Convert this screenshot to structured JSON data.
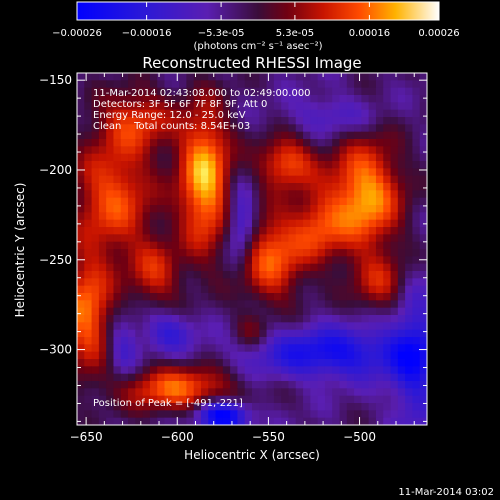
{
  "chart_data": {
    "type": "heatmap",
    "title": "Reconstructed RHESSI Image",
    "xlabel": "Heliocentric X (arcsec)",
    "ylabel": "Heliocentric Y (arcsec)",
    "xlim": [
      -655,
      -463
    ],
    "ylim": [
      -342,
      -146
    ],
    "x_ticks": [
      -650,
      -600,
      -550,
      -500
    ],
    "y_ticks": [
      -150,
      -200,
      -250,
      -300
    ],
    "colorbar": {
      "units": "(photons cm⁻² s⁻¹ asec⁻²)",
      "ticks": [
        "-0.00026",
        "-0.00016",
        "-5.3e-05",
        "5.3e-05",
        "0.00016",
        "0.00026"
      ],
      "min": -0.00026,
      "max": 0.00026
    },
    "annotations": [
      "11-Mar-2014 02:43:08.000 to 02:49:00.000",
      "Detectors: 3F 5F 6F 7F 8F 9F, Att 0",
      "Energy Range: 12.0 - 25.0 keV",
      "Clean    Total counts: 8.54E+03"
    ],
    "peak_label": "Position of Peak = [-491,-221]",
    "grid_cols": 48,
    "grid_rows": 48,
    "blobs": [
      {
        "x": -585,
        "y": -205,
        "sx": 10,
        "sy": 28,
        "a": 1.0
      },
      {
        "x": -497,
        "y": -215,
        "sx": 14,
        "sy": 22,
        "a": 0.95
      },
      {
        "x": -540,
        "y": -196,
        "sx": 11,
        "sy": 10,
        "a": 0.7
      },
      {
        "x": -548,
        "y": -248,
        "sx": 12,
        "sy": 18,
        "a": 0.75
      },
      {
        "x": -523,
        "y": -232,
        "sx": 10,
        "sy": 14,
        "a": 0.55
      },
      {
        "x": -635,
        "y": -215,
        "sx": 16,
        "sy": 24,
        "a": 0.7
      },
      {
        "x": -622,
        "y": -172,
        "sx": 14,
        "sy": 12,
        "a": 0.55
      },
      {
        "x": -650,
        "y": -280,
        "sx": 10,
        "sy": 22,
        "a": 0.8
      },
      {
        "x": -600,
        "y": -322,
        "sx": 22,
        "sy": 9,
        "a": 0.75
      },
      {
        "x": -612,
        "y": -258,
        "sx": 10,
        "sy": 13,
        "a": 0.5
      },
      {
        "x": -488,
        "y": -264,
        "sx": 11,
        "sy": 11,
        "a": 0.45
      },
      {
        "x": -560,
        "y": -290,
        "sx": 7,
        "sy": 7,
        "a": 0.3
      },
      {
        "x": -575,
        "y": -337,
        "sx": 10,
        "sy": 6,
        "a": -0.95
      },
      {
        "x": -515,
        "y": -302,
        "sx": 32,
        "sy": 10,
        "a": -0.65
      },
      {
        "x": -565,
        "y": -230,
        "sx": 6,
        "sy": 14,
        "a": -0.55
      },
      {
        "x": -470,
        "y": -305,
        "sx": 9,
        "sy": 28,
        "a": -0.55
      },
      {
        "x": -605,
        "y": -290,
        "sx": 10,
        "sy": 8,
        "a": -0.4
      },
      {
        "x": -630,
        "y": -300,
        "sx": 6,
        "sy": 12,
        "a": -0.35
      },
      {
        "x": -515,
        "y": -170,
        "sx": 16,
        "sy": 8,
        "a": -0.3
      }
    ]
  },
  "footer": {
    "timestamp": "11-Mar-2014 03:02"
  }
}
